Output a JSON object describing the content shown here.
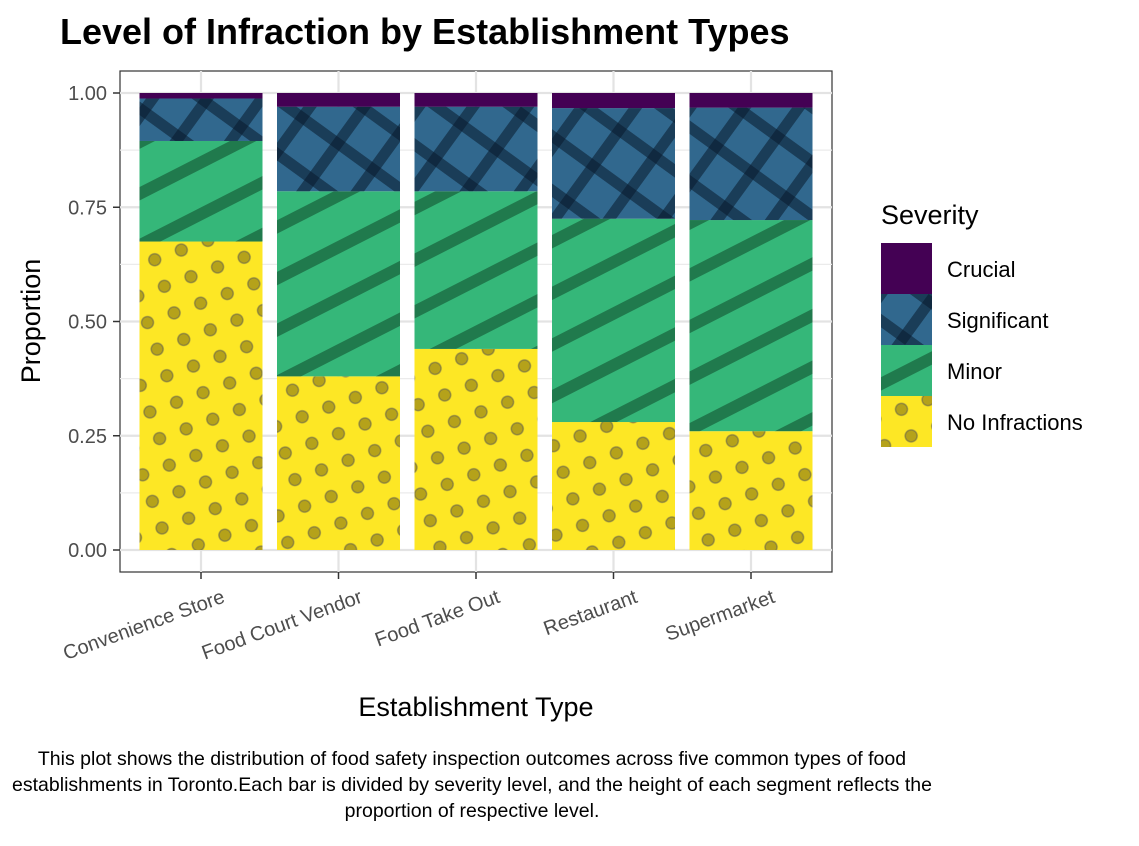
{
  "chart_data": {
    "type": "bar",
    "stacked": true,
    "title": "Level of Infraction by Establishment Types",
    "xlabel": "Establishment Type",
    "ylabel": "Proportion",
    "ylim": [
      0,
      1
    ],
    "yticks": [
      "0.00",
      "0.25",
      "0.50",
      "0.75",
      "1.00"
    ],
    "categories": [
      "Convenience Store",
      "Food Court Vendor",
      "Food Take Out",
      "Restaurant",
      "Supermarket"
    ],
    "legend_title": "Severity",
    "legend_position": "right",
    "grid": true,
    "series": [
      {
        "name": "No Infractions",
        "values": [
          0.675,
          0.38,
          0.44,
          0.28,
          0.26
        ],
        "color": "#FDE725",
        "pattern": "dots"
      },
      {
        "name": "Minor",
        "values": [
          0.22,
          0.405,
          0.345,
          0.445,
          0.462
        ],
        "color": "#35B779",
        "pattern": "stripes"
      },
      {
        "name": "Significant",
        "values": [
          0.093,
          0.185,
          0.185,
          0.242,
          0.246
        ],
        "color": "#31688E",
        "pattern": "crosshatch"
      },
      {
        "name": "Crucial",
        "values": [
          0.012,
          0.03,
          0.03,
          0.033,
          0.032
        ],
        "color": "#440154",
        "pattern": "none"
      }
    ]
  },
  "caption": "This plot shows the distribution of food safety inspection outcomes across five common types of food establishments in Toronto.Each bar is divided by severity level, and the height of each segment reflects the proportion of respective level."
}
